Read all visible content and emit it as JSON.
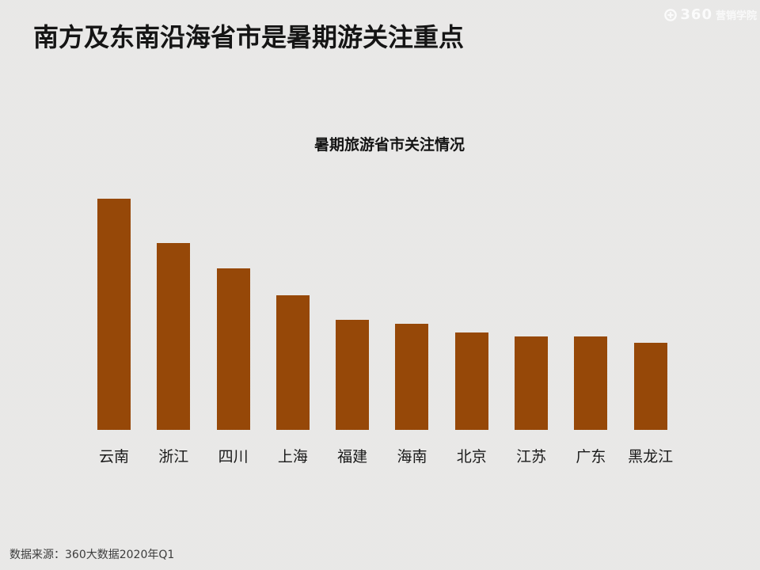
{
  "slide": {
    "title": "南方及东南沿海省市是暑期游关注重点",
    "source_note": "数据来源：360大数据2020年Q1"
  },
  "logo": {
    "icon": "circle-plus-icon",
    "number": "360",
    "text": "营销学院"
  },
  "chart_data": {
    "type": "bar",
    "title": "暑期旅游省市关注情况",
    "categories": [
      "云南",
      "浙江",
      "四川",
      "上海",
      "福建",
      "海南",
      "北京",
      "江苏",
      "广东",
      "黑龙江"
    ],
    "values": [
      100,
      80.7,
      69.9,
      58.2,
      47.6,
      45.9,
      42.1,
      40.3,
      40.4,
      37.6
    ],
    "ylim": [
      0,
      110
    ],
    "xlabel": "",
    "ylabel": "",
    "grid": false,
    "legend": false,
    "axes_visible": false,
    "bar_color": "#964808"
  },
  "colors": {
    "background": "#E8E8E8",
    "title_text": "#151515",
    "category_label": "#1A1A1A",
    "source_text": "#3C3C3C",
    "logo": "#FBFBFB"
  }
}
